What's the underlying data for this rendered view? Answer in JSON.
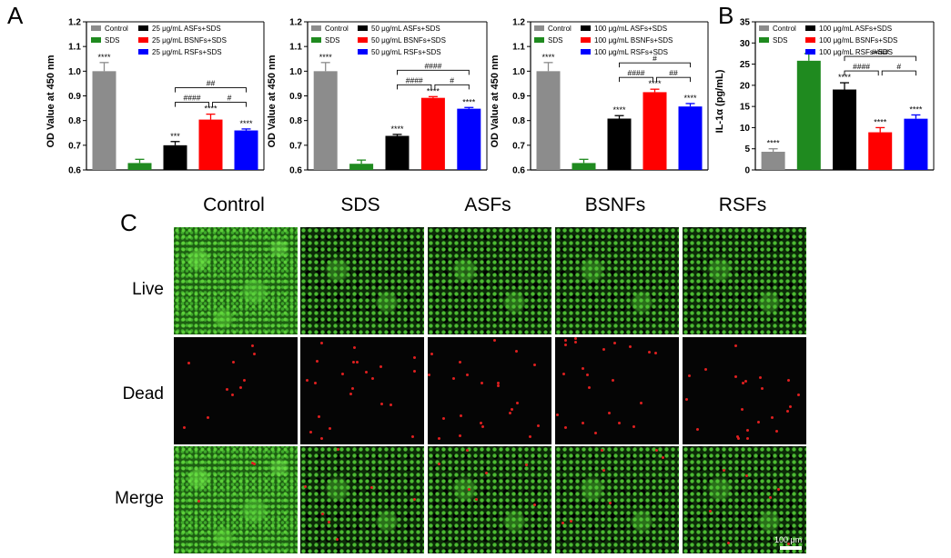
{
  "panel_labels": {
    "a": "A",
    "b": "B",
    "c": "C"
  },
  "chart_data": [
    {
      "type": "bar",
      "ylabel": "OD Value at 450 nm",
      "ylim": [
        0.6,
        1.2
      ],
      "yticks": [
        "0.6",
        "0.7",
        "0.8",
        "0.9",
        "1.0",
        "1.1",
        "1.2"
      ],
      "categories": [
        "Control",
        "SDS",
        "25 μg/mL ASFs+SDS",
        "25 μg/mL BSNFs+SDS",
        "25 μg/mL RSFs+SDS"
      ],
      "values": [
        1.0,
        0.628,
        0.7,
        0.804,
        0.76
      ],
      "errors": [
        0.035,
        0.015,
        0.015,
        0.022,
        0.006
      ],
      "colors": [
        "#8c8c8c",
        "#1f8a1f",
        "#000000",
        "#ff0000",
        "#0000ff"
      ],
      "sig_above": [
        "****",
        "",
        "***",
        "****",
        "****"
      ],
      "brackets": [
        {
          "from": 2,
          "to": 4,
          "label": "##",
          "level": 0
        },
        {
          "from": 2,
          "to": 3,
          "label": "####",
          "level": 1
        },
        {
          "from": 3,
          "to": 4,
          "label": "#",
          "level": 1
        }
      ],
      "legend": [
        "Control",
        "SDS",
        "25 μg/mL ASFs+SDS",
        "25 μg/mL BSNFs+SDS",
        "25 μg/mL RSFs+SDS"
      ]
    },
    {
      "type": "bar",
      "ylabel": "OD Value at 450 nm",
      "ylim": [
        0.6,
        1.2
      ],
      "yticks": [
        "0.6",
        "0.7",
        "0.8",
        "0.9",
        "1.0",
        "1.1",
        "1.2"
      ],
      "categories": [
        "Control",
        "SDS",
        "50 μg/mL ASFs+SDS",
        "50 μg/mL BSNFs+SDS",
        "50 μg/mL RSFs+SDS"
      ],
      "values": [
        1.0,
        0.625,
        0.738,
        0.892,
        0.848
      ],
      "errors": [
        0.035,
        0.015,
        0.006,
        0.005,
        0.005
      ],
      "colors": [
        "#8c8c8c",
        "#1f8a1f",
        "#000000",
        "#ff0000",
        "#0000ff"
      ],
      "sig_above": [
        "****",
        "",
        "****",
        "****",
        "****"
      ],
      "brackets": [
        {
          "from": 2,
          "to": 4,
          "label": "####",
          "level": 0
        },
        {
          "from": 2,
          "to": 3,
          "label": "####",
          "level": 1
        },
        {
          "from": 3,
          "to": 4,
          "label": "#",
          "level": 1
        }
      ],
      "legend": [
        "Control",
        "SDS",
        "50 μg/mL ASFs+SDS",
        "50 μg/mL BSNFs+SDS",
        "50 μg/mL RSFs+SDS"
      ]
    },
    {
      "type": "bar",
      "ylabel": "OD Value at 450 nm",
      "ylim": [
        0.6,
        1.2
      ],
      "yticks": [
        "0.6",
        "0.7",
        "0.8",
        "0.9",
        "1.0",
        "1.1",
        "1.2"
      ],
      "categories": [
        "Control",
        "SDS",
        "100 μg/mL ASFs+SDS",
        "100 μg/mL BSNFs+SDS",
        "100 μg/mL RSFs+SDS"
      ],
      "values": [
        1.0,
        0.628,
        0.808,
        0.915,
        0.857
      ],
      "errors": [
        0.035,
        0.015,
        0.012,
        0.012,
        0.012
      ],
      "colors": [
        "#8c8c8c",
        "#1f8a1f",
        "#000000",
        "#ff0000",
        "#0000ff"
      ],
      "sig_above": [
        "****",
        "",
        "****",
        "****",
        "****"
      ],
      "brackets": [
        {
          "from": 2,
          "to": 4,
          "label": "#",
          "level": 0
        },
        {
          "from": 2,
          "to": 3,
          "label": "####",
          "level": 1
        },
        {
          "from": 3,
          "to": 4,
          "label": "##",
          "level": 1
        }
      ],
      "legend": [
        "Control",
        "SDS",
        "100 μg/mL ASFs+SDS",
        "100 μg/mL BSNFs+SDS",
        "100 μg/mL RSFs+SDS"
      ]
    },
    {
      "type": "bar",
      "ylabel": "IL-1α (pg/mL)",
      "ylim": [
        0,
        35
      ],
      "yticks": [
        "0",
        "5",
        "10",
        "15",
        "20",
        "25",
        "30",
        "35"
      ],
      "categories": [
        "Control",
        "SDS",
        "100 μg/mL ASFs+SDS",
        "100 μg/mL BSNFs+SDS",
        "100 μg/mL RSFs+SDS"
      ],
      "values": [
        4.3,
        25.8,
        19.0,
        8.9,
        12.1
      ],
      "errors": [
        0.7,
        1.7,
        1.6,
        1.1,
        0.9
      ],
      "colors": [
        "#8c8c8c",
        "#1f8a1f",
        "#000000",
        "#ff0000",
        "#0000ff"
      ],
      "sig_above": [
        "****",
        "",
        "****",
        "****",
        "****"
      ],
      "brackets": [
        {
          "from": 2,
          "to": 4,
          "label": "####",
          "level": 0
        },
        {
          "from": 2,
          "to": 3,
          "label": "####",
          "level": 1
        },
        {
          "from": 3,
          "to": 4,
          "label": "#",
          "level": 1
        }
      ],
      "legend": [
        "Control",
        "SDS",
        "100 μg/mL ASFs+SDS",
        "100 μg/mL BSNFs+SDS",
        "100 μg/mL RSFs+SDS"
      ]
    }
  ],
  "fluorescence": {
    "columns": [
      "Control",
      "SDS",
      "ASFs",
      "BSNFs",
      "RSFs"
    ],
    "rows": [
      "Live",
      "Dead",
      "Merge"
    ],
    "scale_bar": "100 μm"
  }
}
